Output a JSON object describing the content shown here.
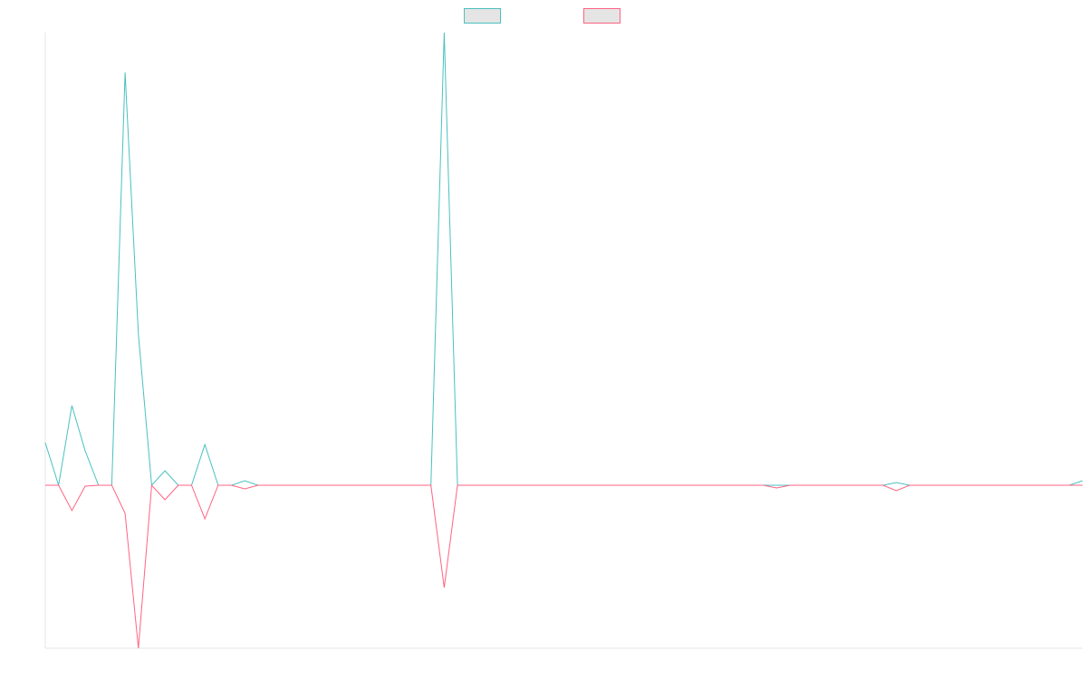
{
  "chart_data": {
    "type": "line",
    "title": "",
    "xlabel": "",
    "ylabel": "",
    "grid": false,
    "legend_position": "top-center",
    "x": [
      0,
      1,
      2,
      3,
      4,
      5,
      6,
      7,
      8,
      9,
      10,
      11,
      12,
      13,
      14,
      15,
      16,
      17,
      18,
      19,
      20,
      21,
      22,
      23,
      24,
      25,
      26,
      27,
      28,
      29,
      30,
      31,
      32,
      33,
      34,
      35,
      36,
      37,
      38,
      39,
      40,
      41,
      42,
      43,
      44,
      45,
      46,
      47,
      48,
      49,
      50,
      51,
      52,
      53,
      54,
      55,
      56,
      57,
      58,
      59,
      60,
      61,
      62,
      63,
      64,
      65,
      66,
      67,
      68,
      69,
      70,
      71,
      72,
      73,
      74,
      75,
      76,
      77,
      78
    ],
    "ylim": [
      -180,
      500
    ],
    "series": [
      {
        "color": "#4bc0c0",
        "fill": "#e5e5e5",
        "values": [
          47,
          0,
          88,
          38,
          0,
          0,
          456,
          167,
          0,
          16,
          0,
          0,
          45,
          0,
          0,
          5,
          0,
          0,
          0,
          0,
          0,
          0,
          0,
          0,
          0,
          0,
          0,
          0,
          0,
          0,
          500,
          0,
          0,
          0,
          0,
          0,
          0,
          0,
          0,
          0,
          0,
          0,
          0,
          0,
          0,
          0,
          0,
          0,
          0,
          0,
          0,
          0,
          0,
          0,
          0,
          0,
          0,
          0,
          0,
          0,
          0,
          0,
          0,
          0,
          3,
          0,
          0,
          0,
          0,
          0,
          0,
          0,
          0,
          0,
          0,
          0,
          0,
          0,
          5
        ]
      },
      {
        "color": "#ff6384",
        "fill": "#e5e5e5",
        "values": [
          0,
          0,
          -28,
          -1,
          0,
          0,
          -31,
          -180,
          0,
          -16,
          0,
          0,
          -37,
          0,
          0,
          -4,
          0,
          0,
          0,
          0,
          0,
          0,
          0,
          0,
          0,
          0,
          0,
          0,
          0,
          0,
          -113,
          0,
          0,
          0,
          0,
          0,
          0,
          0,
          0,
          0,
          0,
          0,
          0,
          0,
          0,
          0,
          0,
          0,
          0,
          0,
          0,
          0,
          0,
          0,
          0,
          -3,
          0,
          0,
          0,
          0,
          0,
          0,
          0,
          0,
          -6,
          0,
          0,
          0,
          0,
          0,
          0,
          0,
          0,
          0,
          0,
          0,
          0,
          0,
          0
        ]
      }
    ]
  }
}
